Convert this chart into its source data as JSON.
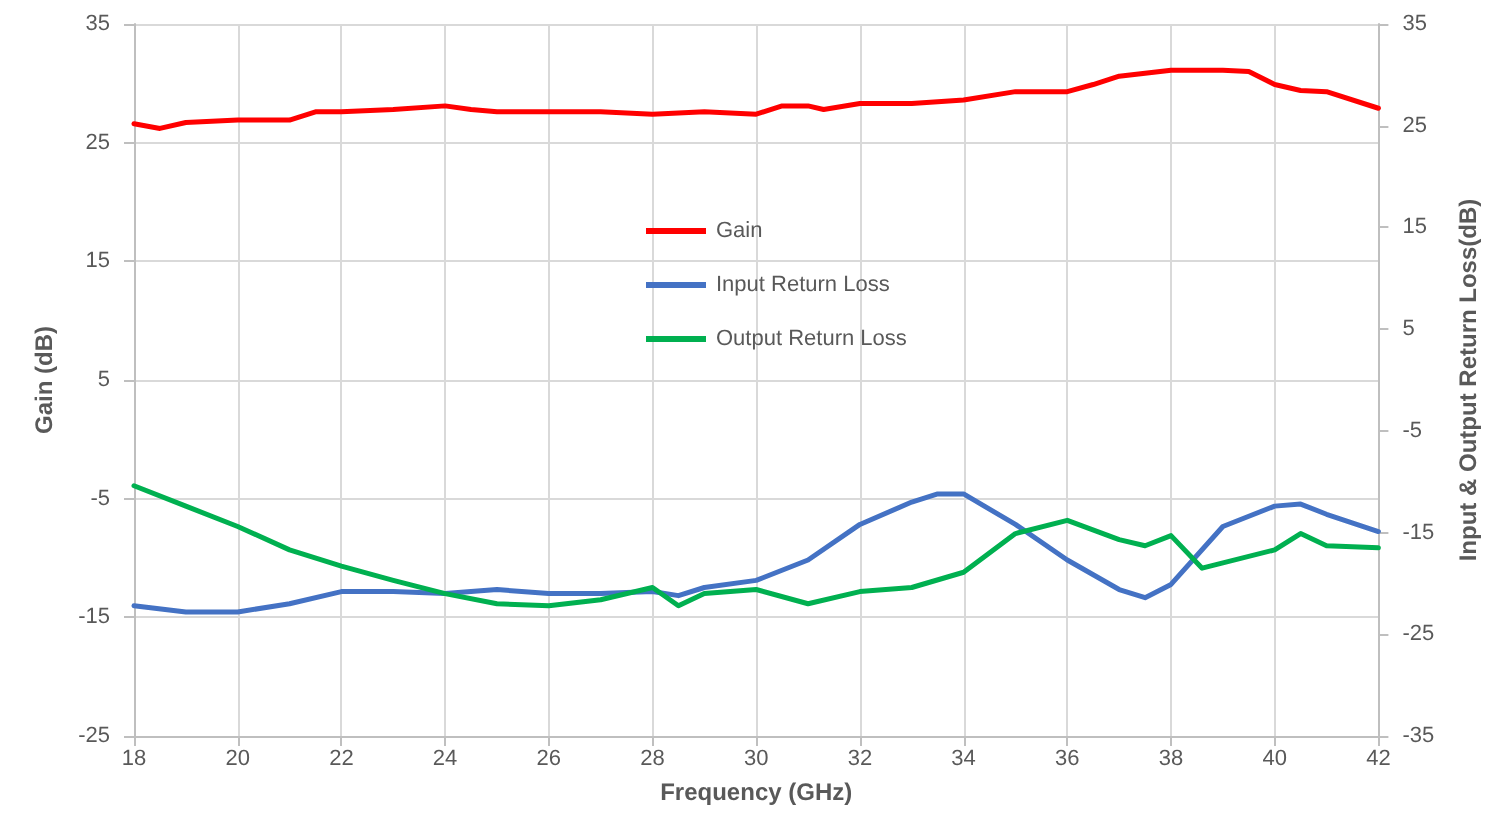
{
  "chart_data": {
    "type": "line",
    "xlabel": "Frequency (GHz)",
    "ylabel": "Gain (dB)",
    "y2label": "Input & Output Return Loss(dB)",
    "xlim": [
      18,
      42
    ],
    "xticks": [
      18,
      20,
      22,
      24,
      26,
      28,
      30,
      32,
      34,
      36,
      38,
      40,
      42
    ],
    "ylim": [
      -25,
      35
    ],
    "yticks": [
      -25,
      -15,
      -5,
      5,
      15,
      25,
      35
    ],
    "y2lim": [
      -35,
      35
    ],
    "y2ticks": [
      -35,
      -25,
      -15,
      -5,
      5,
      15,
      25,
      35
    ],
    "grid": true,
    "legend": "center",
    "marker": "none",
    "line_style": "solid",
    "series": [
      {
        "name": "Gain",
        "color": "#ff0000",
        "x": [
          18,
          18.5,
          19,
          20,
          21,
          21.5,
          22,
          23,
          24,
          24.5,
          25,
          26,
          27,
          28,
          29,
          30,
          30.5,
          31,
          31.3,
          32,
          33,
          34,
          35,
          36,
          36.5,
          37,
          38,
          39,
          39.5,
          40,
          40.5,
          41,
          42
        ],
        "values": [
          26.6,
          26.2,
          26.7,
          26.9,
          26.9,
          27.6,
          27.6,
          27.8,
          28.1,
          27.8,
          27.6,
          27.6,
          27.6,
          27.4,
          27.6,
          27.4,
          28.1,
          28.1,
          27.8,
          28.3,
          28.3,
          28.6,
          29.3,
          29.3,
          29.9,
          30.6,
          31.1,
          31.1,
          31.0,
          29.9,
          29.4,
          29.3,
          27.9
        ]
      },
      {
        "name": "Input Return Loss",
        "color": "#4472c4",
        "axis": "y2",
        "x": [
          18,
          19,
          20,
          21,
          22,
          23,
          24,
          25,
          26,
          27,
          28,
          28.5,
          29,
          30,
          31,
          32,
          33,
          33.5,
          34,
          35,
          36,
          37,
          37.5,
          38,
          39,
          40,
          40.5,
          41,
          42
        ],
        "values": [
          -22.2,
          -22.8,
          -22.8,
          -22.0,
          -20.8,
          -20.8,
          -21.0,
          -20.6,
          -21.0,
          -21.0,
          -20.8,
          -21.2,
          -20.4,
          -19.7,
          -17.7,
          -14.2,
          -12.0,
          -11.2,
          -11.2,
          -14.2,
          -17.7,
          -20.6,
          -21.4,
          -20.1,
          -14.4,
          -12.4,
          -12.2,
          -13.2,
          -14.9
        ]
      },
      {
        "name": "Output Return Loss",
        "color": "#00b050",
        "axis": "y2",
        "x": [
          18,
          19,
          20,
          21,
          22,
          23,
          24,
          25,
          26,
          27,
          28,
          28.5,
          29,
          30,
          31,
          32,
          33,
          34,
          35,
          36,
          37,
          37.5,
          38,
          38.6,
          40,
          40.5,
          41,
          42
        ],
        "values": [
          -10.4,
          -12.4,
          -14.4,
          -16.7,
          -18.3,
          -19.7,
          -21.0,
          -22.0,
          -22.2,
          -21.6,
          -20.4,
          -22.2,
          -21.0,
          -20.6,
          -22.0,
          -20.8,
          -20.4,
          -18.9,
          -15.1,
          -13.8,
          -15.7,
          -16.3,
          -15.3,
          -18.5,
          -16.7,
          -15.1,
          -16.3,
          -16.5
        ]
      }
    ]
  }
}
